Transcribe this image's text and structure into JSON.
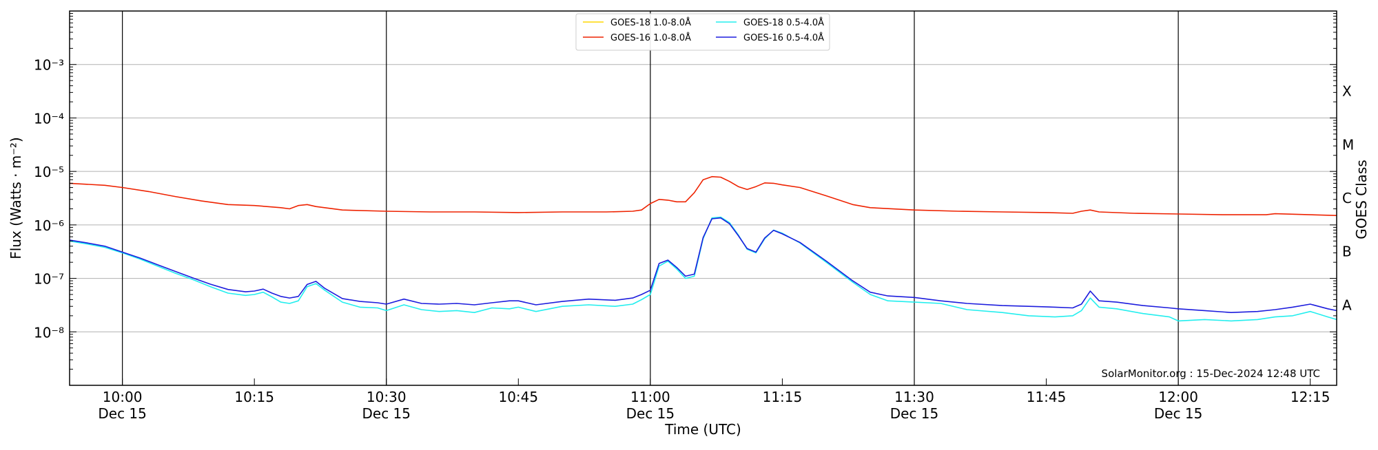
{
  "chart_data": {
    "type": "line",
    "xlabel": "Time (UTC)",
    "ylabel": "Flux (Watts · m⁻²)",
    "right_axis_label": "GOES Class",
    "y_scale": "log",
    "ylim": [
      1e-09,
      0.01
    ],
    "xlim": [
      "2024-12-15 09:54",
      "2024-12-15 12:18"
    ],
    "grid": "horizontal at decades",
    "legend_position": "top-center",
    "y_ticks": [
      {
        "value": 1e-08,
        "label": "10⁻⁸"
      },
      {
        "value": 1e-07,
        "label": "10⁻⁷"
      },
      {
        "value": 1e-06,
        "label": "10⁻⁶"
      },
      {
        "value": 1e-05,
        "label": "10⁻⁵"
      },
      {
        "value": 0.0001,
        "label": "10⁻⁴"
      },
      {
        "value": 0.001,
        "label": "10⁻³"
      }
    ],
    "x_ticks": [
      {
        "time": "10:00",
        "label": "10:00",
        "sublabel": "Dec 15",
        "vline": true
      },
      {
        "time": "10:15",
        "label": "10:15",
        "sublabel": "",
        "vline": false
      },
      {
        "time": "10:30",
        "label": "10:30",
        "sublabel": "Dec 15",
        "vline": true
      },
      {
        "time": "10:45",
        "label": "10:45",
        "sublabel": "",
        "vline": false
      },
      {
        "time": "11:00",
        "label": "11:00",
        "sublabel": "Dec 15",
        "vline": true
      },
      {
        "time": "11:15",
        "label": "11:15",
        "sublabel": "",
        "vline": false
      },
      {
        "time": "11:30",
        "label": "11:30",
        "sublabel": "Dec 15",
        "vline": true
      },
      {
        "time": "11:45",
        "label": "11:45",
        "sublabel": "",
        "vline": false
      },
      {
        "time": "12:00",
        "label": "12:00",
        "sublabel": "Dec 15",
        "vline": true
      },
      {
        "time": "12:15",
        "label": "12:15",
        "sublabel": "",
        "vline": false
      }
    ],
    "goes_classes": [
      {
        "label": "X",
        "flux": 0.0001
      },
      {
        "label": "M",
        "flux": 1e-05
      },
      {
        "label": "C",
        "flux": 1e-06
      },
      {
        "label": "B",
        "flux": 1e-07
      },
      {
        "label": "A",
        "flux": 1e-08
      }
    ],
    "series": [
      {
        "name": "GOES-18 1.0-8.0Å",
        "color": "#ffd700",
        "x": [],
        "values": []
      },
      {
        "name": "GOES-16 1.0-8.0Å",
        "color": "#ee2200",
        "x": [
          "09:54",
          "09:58",
          "10:00",
          "10:03",
          "10:06",
          "10:09",
          "10:12",
          "10:15",
          "10:18",
          "10:19",
          "10:20",
          "10:21",
          "10:22",
          "10:25",
          "10:30",
          "10:35",
          "10:40",
          "10:45",
          "10:50",
          "10:55",
          "10:58",
          "10:59",
          "11:00",
          "11:01",
          "11:02",
          "11:03",
          "11:04",
          "11:05",
          "11:06",
          "11:07",
          "11:08",
          "11:09",
          "11:10",
          "11:11",
          "11:12",
          "11:13",
          "11:14",
          "11:15",
          "11:17",
          "11:20",
          "11:23",
          "11:25",
          "11:30",
          "11:35",
          "11:40",
          "11:45",
          "11:48",
          "11:49",
          "11:50",
          "11:51",
          "11:55",
          "12:00",
          "12:05",
          "12:10",
          "12:11",
          "12:15",
          "12:18"
        ],
        "values": [
          6e-06,
          5.5e-06,
          5e-06,
          4.2e-06,
          3.4e-06,
          2.8e-06,
          2.4e-06,
          2.3e-06,
          2.1e-06,
          2e-06,
          2.3e-06,
          2.4e-06,
          2.2e-06,
          1.9e-06,
          1.8e-06,
          1.75e-06,
          1.75e-06,
          1.7e-06,
          1.75e-06,
          1.75e-06,
          1.8e-06,
          1.9e-06,
          2.5e-06,
          3e-06,
          2.9e-06,
          2.7e-06,
          2.7e-06,
          4e-06,
          7e-06,
          8e-06,
          7.8e-06,
          6.5e-06,
          5.2e-06,
          4.6e-06,
          5.2e-06,
          6.1e-06,
          6e-06,
          5.6e-06,
          5e-06,
          3.5e-06,
          2.4e-06,
          2.1e-06,
          1.9e-06,
          1.8e-06,
          1.75e-06,
          1.7e-06,
          1.65e-06,
          1.8e-06,
          1.9e-06,
          1.75e-06,
          1.65e-06,
          1.6e-06,
          1.55e-06,
          1.55e-06,
          1.62e-06,
          1.55e-06,
          1.5e-06
        ]
      },
      {
        "name": "GOES-18 0.5-4.0Å",
        "color": "#22eeee",
        "x": [
          "09:54",
          "09:56",
          "09:58",
          "10:00",
          "10:02",
          "10:04",
          "10:06",
          "10:08",
          "10:10",
          "10:12",
          "10:14",
          "10:15",
          "10:16",
          "10:17",
          "10:18",
          "10:19",
          "10:20",
          "10:21",
          "10:22",
          "10:23",
          "10:25",
          "10:27",
          "10:29",
          "10:30",
          "10:32",
          "10:34",
          "10:36",
          "10:38",
          "10:40",
          "10:42",
          "10:44",
          "10:45",
          "10:47",
          "10:50",
          "10:53",
          "10:56",
          "10:58",
          "10:59",
          "11:00",
          "11:01",
          "11:02",
          "11:03",
          "11:04",
          "11:05",
          "11:06",
          "11:07",
          "11:08",
          "11:09",
          "11:10",
          "11:11",
          "11:12",
          "11:13",
          "11:14",
          "11:15",
          "11:17",
          "11:20",
          "11:23",
          "11:25",
          "11:27",
          "11:30",
          "11:33",
          "11:36",
          "11:40",
          "11:43",
          "11:46",
          "11:48",
          "11:49",
          "11:50",
          "11:51",
          "11:53",
          "11:56",
          "11:59",
          "12:00",
          "12:03",
          "12:06",
          "12:09",
          "12:11",
          "12:13",
          "12:15",
          "12:17",
          "12:18"
        ],
        "values": [
          5e-07,
          4.4e-07,
          3.8e-07,
          3e-07,
          2.3e-07,
          1.7e-07,
          1.25e-07,
          9.5e-08,
          7e-08,
          5.3e-08,
          4.8e-08,
          5e-08,
          5.5e-08,
          4.5e-08,
          3.6e-08,
          3.4e-08,
          3.8e-08,
          7e-08,
          8e-08,
          6e-08,
          3.6e-08,
          2.9e-08,
          2.8e-08,
          2.5e-08,
          3.2e-08,
          2.6e-08,
          2.4e-08,
          2.5e-08,
          2.3e-08,
          2.8e-08,
          2.7e-08,
          2.9e-08,
          2.4e-08,
          3e-08,
          3.2e-08,
          3e-08,
          3.3e-08,
          4e-08,
          5e-08,
          1.7e-07,
          2.1e-07,
          1.5e-07,
          1e-07,
          1.1e-07,
          5.5e-07,
          1.35e-06,
          1.4e-06,
          1.1e-06,
          6.5e-07,
          3.5e-07,
          3e-07,
          5.5e-07,
          8e-07,
          7e-07,
          4.6e-07,
          2e-07,
          8.5e-08,
          5e-08,
          3.8e-08,
          3.6e-08,
          3.4e-08,
          2.6e-08,
          2.3e-08,
          2e-08,
          1.9e-08,
          2e-08,
          2.5e-08,
          4.3e-08,
          2.9e-08,
          2.7e-08,
          2.2e-08,
          1.9e-08,
          1.6e-08,
          1.7e-08,
          1.6e-08,
          1.7e-08,
          1.9e-08,
          2e-08,
          2.4e-08,
          1.9e-08,
          1.7e-08
        ]
      },
      {
        "name": "GOES-16 0.5-4.0Å",
        "color": "#1c1cdd",
        "x": [
          "09:54",
          "09:56",
          "09:58",
          "10:00",
          "10:02",
          "10:04",
          "10:06",
          "10:08",
          "10:10",
          "10:12",
          "10:14",
          "10:15",
          "10:16",
          "10:17",
          "10:18",
          "10:19",
          "10:20",
          "10:21",
          "10:22",
          "10:23",
          "10:25",
          "10:27",
          "10:29",
          "10:30",
          "10:32",
          "10:34",
          "10:36",
          "10:38",
          "10:40",
          "10:42",
          "10:44",
          "10:45",
          "10:47",
          "10:50",
          "10:53",
          "10:56",
          "10:58",
          "10:59",
          "11:00",
          "11:01",
          "11:02",
          "11:03",
          "11:04",
          "11:05",
          "11:06",
          "11:07",
          "11:08",
          "11:09",
          "11:10",
          "11:11",
          "11:12",
          "11:13",
          "11:14",
          "11:15",
          "11:17",
          "11:20",
          "11:23",
          "11:25",
          "11:27",
          "11:30",
          "11:33",
          "11:36",
          "11:40",
          "11:43",
          "11:46",
          "11:48",
          "11:49",
          "11:50",
          "11:51",
          "11:53",
          "11:56",
          "11:59",
          "12:00",
          "12:03",
          "12:06",
          "12:09",
          "12:11",
          "12:13",
          "12:15",
          "12:17",
          "12:18"
        ],
        "values": [
          5.2e-07,
          4.6e-07,
          4e-07,
          3.1e-07,
          2.4e-07,
          1.8e-07,
          1.35e-07,
          1.02e-07,
          7.8e-08,
          6.2e-08,
          5.6e-08,
          5.8e-08,
          6.3e-08,
          5.3e-08,
          4.6e-08,
          4.3e-08,
          4.6e-08,
          7.7e-08,
          8.8e-08,
          6.5e-08,
          4.2e-08,
          3.7e-08,
          3.5e-08,
          3.3e-08,
          4.1e-08,
          3.4e-08,
          3.3e-08,
          3.4e-08,
          3.2e-08,
          3.5e-08,
          3.8e-08,
          3.8e-08,
          3.2e-08,
          3.7e-08,
          4.1e-08,
          3.9e-08,
          4.3e-08,
          5e-08,
          6e-08,
          1.9e-07,
          2.2e-07,
          1.6e-07,
          1.1e-07,
          1.2e-07,
          5.8e-07,
          1.3e-06,
          1.35e-06,
          1.05e-06,
          6.3e-07,
          3.6e-07,
          3.1e-07,
          5.7e-07,
          7.9e-07,
          6.8e-07,
          4.7e-07,
          2.1e-07,
          9e-08,
          5.5e-08,
          4.7e-08,
          4.4e-08,
          3.8e-08,
          3.4e-08,
          3.1e-08,
          3e-08,
          2.9e-08,
          2.8e-08,
          3.3e-08,
          5.8e-08,
          3.8e-08,
          3.6e-08,
          3.1e-08,
          2.8e-08,
          2.7e-08,
          2.5e-08,
          2.3e-08,
          2.4e-08,
          2.6e-08,
          2.9e-08,
          3.3e-08,
          2.7e-08,
          2.5e-08
        ]
      }
    ]
  },
  "credit": "SolarMonitor.org : 15-Dec-2024 12:48 UTC"
}
